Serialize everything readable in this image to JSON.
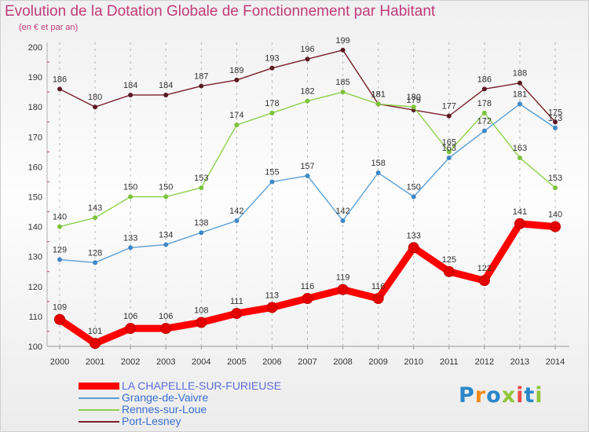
{
  "title": "Evolution de la Dotation Globale de Fonctionnement par Habitant",
  "subtitle": "(en € et par an)",
  "logo_text": "Proxiti",
  "chart_data": {
    "type": "line",
    "title": "Evolution de la Dotation Globale de Fonctionnement par Habitant",
    "subtitle": "(en € et par an)",
    "xlabel": "",
    "ylabel": "",
    "x": [
      2000,
      2001,
      2002,
      2003,
      2004,
      2005,
      2006,
      2007,
      2008,
      2009,
      2010,
      2011,
      2012,
      2013,
      2014
    ],
    "ylim": [
      100,
      200
    ],
    "yticks": [
      100,
      110,
      120,
      130,
      140,
      150,
      160,
      170,
      180,
      190,
      200
    ],
    "grid": "vertical dashed",
    "legend_position": "bottom-left",
    "series": [
      {
        "name": "Port-Lesney",
        "color": "#7a1f2b",
        "point_color": "#5a1a22",
        "emphasis": false,
        "values": [
          186,
          180,
          184,
          184,
          187,
          189,
          193,
          196,
          199,
          181,
          179,
          177,
          186,
          188,
          175
        ]
      },
      {
        "name": "Rennes-sur-Loue",
        "color": "#8ed14c",
        "point_color": "#7cc23c",
        "emphasis": false,
        "values": [
          140,
          143,
          150,
          150,
          153,
          174,
          178,
          182,
          185,
          181,
          180,
          165,
          178,
          163,
          153
        ]
      },
      {
        "name": "Grange-de-Vaivre",
        "color": "#5b9fd6",
        "point_color": "#3f88c6",
        "emphasis": false,
        "values": [
          129,
          128,
          133,
          134,
          138,
          142,
          155,
          157,
          142,
          158,
          150,
          163,
          172,
          181,
          173
        ]
      },
      {
        "name": "LA CHAPELLE-SUR-FURIEUSE",
        "color": "#ff0000",
        "point_color": "#e30000",
        "emphasis": true,
        "values": [
          109,
          101,
          106,
          106,
          108,
          111,
          113,
          116,
          119,
          116,
          133,
          125,
          122,
          141,
          140
        ]
      }
    ],
    "legend": [
      {
        "name": "LA CHAPELLE-SUR-FURIEUSE",
        "color": "#ff0000",
        "label_color": "#5a6cd8"
      },
      {
        "name": "Grange-de-Vaivre",
        "color": "#5b9fd6",
        "label_color": "#3a6fd0"
      },
      {
        "name": "Rennes-sur-Loue",
        "color": "#8ed14c",
        "label_color": "#3a6fd0"
      },
      {
        "name": "Port-Lesney",
        "color": "#7a1f2b",
        "label_color": "#3a6fd0"
      }
    ]
  }
}
